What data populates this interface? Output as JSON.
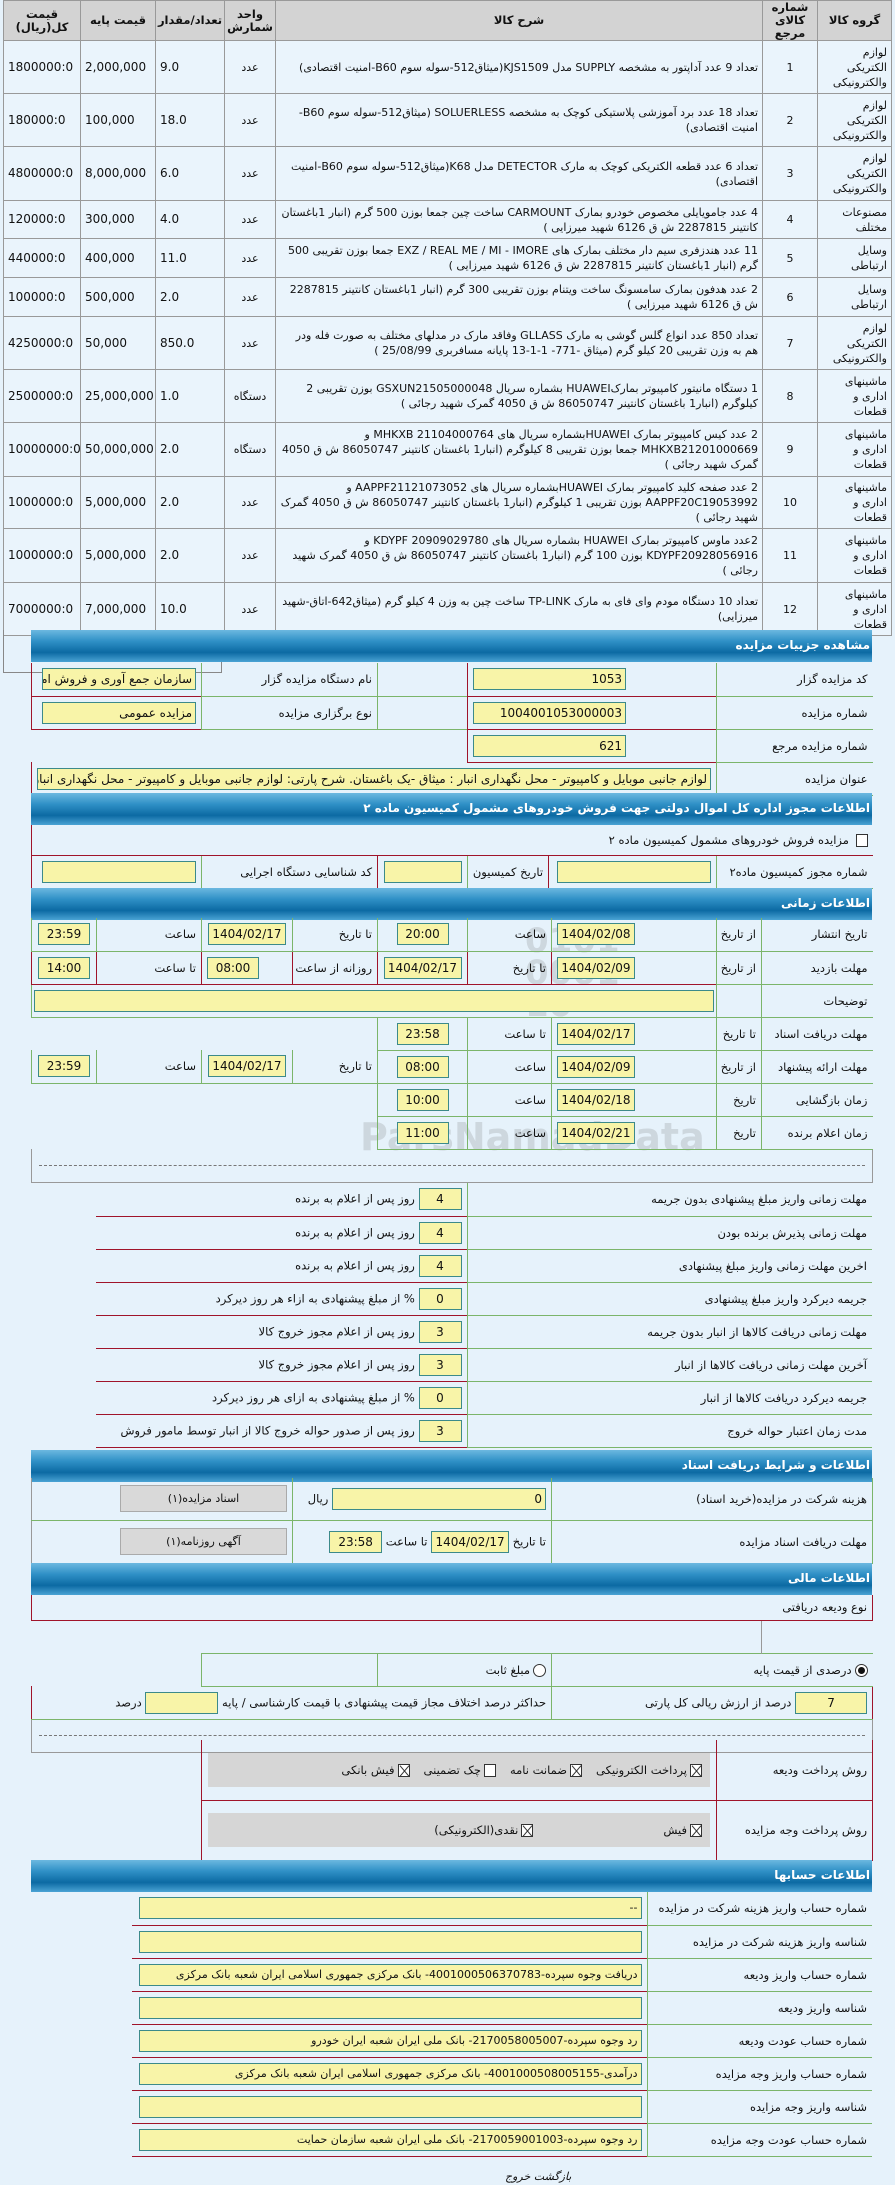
{
  "items_table": {
    "headers": [
      "گروه کالا",
      "شماره کالای مرجع",
      "شرح کالا",
      "واحد شمارش",
      "تعداد/مقدار",
      "قیمت پایه",
      "قیمت کل(ریال)"
    ],
    "rows": [
      {
        "group": "لوازم الکتریکی والکترونیکی",
        "ref": "1",
        "desc": "تعداد 9 عدد آداپتور به مشخصه SUPPLY مدل KJS1509(میثاق512-سوله سوم B60-امنیت اقتصادی)",
        "unit": "عدد",
        "qty": "9.0",
        "base": "2,000,000",
        "total": "1800000:0"
      },
      {
        "group": "لوازم الکتریکی والکترونیکی",
        "ref": "2",
        "desc": "تعداد 18 عدد برد آموزشی پلاستیکی کوچک به مشخصه SOLUERLESS (میثاق512-سوله سوم B60-امنیت اقتصادی)",
        "unit": "عدد",
        "qty": "18.0",
        "base": "100,000",
        "total": "180000:0"
      },
      {
        "group": "لوازم الکتریکی والکترونیکی",
        "ref": "3",
        "desc": "تعداد 6 عدد قطعه الکتریکی کوچک به مارک DETECTOR مدل K68(میثاق512-سوله سوم B60-امنیت اقتصادی)",
        "unit": "عدد",
        "qty": "6.0",
        "base": "8,000,000",
        "total": "4800000:0"
      },
      {
        "group": "مصنوعات مختلف",
        "ref": "4",
        "desc": "4 عدد جامویایلی مخصوص خودرو بمارک CARMOUNT ساخت چین جمعا بوزن 500 گرم (انبار 1باغستان کانتینر 2287815 ش ق 6126 شهید میرزایی )",
        "unit": "عدد",
        "qty": "4.0",
        "base": "300,000",
        "total": "120000:0"
      },
      {
        "group": "وسایل ارتباطی",
        "ref": "5",
        "desc": "11 عدد هندزفری سیم دار مختلف بمارک های EXZ / REAL ME / MI - IMORE جمعا بوزن تقریبی 500 گرم (انبار 1باغستان کانتینر 2287815 ش ق 6126 شهید میرزایی )",
        "unit": "عدد",
        "qty": "11.0",
        "base": "400,000",
        "total": "440000:0"
      },
      {
        "group": "وسایل ارتباطی",
        "ref": "6",
        "desc": "2 عدد هدفون بمارک سامسونگ ساخت ویتنام بوزن تقریبی 300 گرم (انبار 1باغستان کانتینر 2287815 ش ق 6126 شهید میرزایی )",
        "unit": "عدد",
        "qty": "2.0",
        "base": "500,000",
        "total": "100000:0"
      },
      {
        "group": "لوازم الکتریکی والکترونیکی",
        "ref": "7",
        "desc": "تعداد 850 عدد انواع گلس گوشی به مارک GLLASS وفاقد مارک در مدلهای مختلف به صورت فله ودر هم به وزن تقریبی 20 کیلو گرم (میثاق -771- 1-1-13 پایانه مسافربری 25/08/99 )",
        "unit": "عدد",
        "qty": "850.0",
        "base": "50,000",
        "total": "4250000:0"
      },
      {
        "group": "ماشینهای اداری و قطعات",
        "ref": "8",
        "desc": "1 دستگاه مانیتور کامپیوتر بمارکHUAWEI بشماره سریال GSXUN21505000048 بوزن تقریبی 2 کیلوگرم (انبار1 باغستان کانتینر 86050747 ش ق 4050 گمرک شهید رجائی )",
        "unit": "دستگاه",
        "qty": "1.0",
        "base": "25,000,000",
        "total": "2500000:0"
      },
      {
        "group": "ماشینهای اداری و قطعات",
        "ref": "9",
        "desc": "2 عدد کیس کامپیوتر بمارک HUAWEIبشماره سریال های MHKXB 21104000764 و MHKXB21201000669 جمعا بوزن تقریبی 8 کیلوگرم (انبار1 باغستان کانتینر 86050747 ش ق 4050 گمرک شهید رجائی )",
        "unit": "دستگاه",
        "qty": "2.0",
        "base": "50,000,000",
        "total": "10000000:0"
      },
      {
        "group": "ماشینهای اداری و قطعات",
        "ref": "10",
        "desc": "2 عدد صفحه کلید کامپیوتر بمارک HUAWEIبشماره سریال های AAPPF21121073052 و AAPPF20C19053992 بوزن تقریبی 1 کیلوگرم (انبار1 باغستان کانتینر 86050747 ش ق 4050 گمرک شهید رجائی )",
        "unit": "عدد",
        "qty": "2.0",
        "base": "5,000,000",
        "total": "1000000:0"
      },
      {
        "group": "ماشینهای اداری و قطعات",
        "ref": "11",
        "desc": "2عدد ماوس کامپیوتر بمارک HUAWEI بشماره سریال های KDYPF 20909029780 و KDYPF20928056916 بوزن 100 گرم (انبار1 باغستان کانتینر 86050747 ش ق 4050 گمرک شهید رجائی )",
        "unit": "عدد",
        "qty": "2.0",
        "base": "5,000,000",
        "total": "1000000:0"
      },
      {
        "group": "ماشینهای اداری و قطعات",
        "ref": "12",
        "desc": "تعداد 10 دستگاه مودم وای فای به مارک TP-LINK ساخت چین به وزن 4 کیلو گرم (میثاق642-اتاق-شهید میرزایی)",
        "unit": "عدد",
        "qty": "10.0",
        "base": "7,000,000",
        "total": "7000000:0"
      }
    ]
  },
  "details": {
    "title": "مشاهده جزییات مزایده",
    "code_label": "کد مزایده گزار",
    "code": "1053",
    "org_label": "نام دستگاه مزایده گزار",
    "org": "سازمان جمع آوری و فروش امو",
    "number_label": "شماره مزایده",
    "number": "1004001053000003",
    "type_label": "نوع برگزاری مزایده",
    "type": "مزایده عمومی",
    "ref_label": "شماره مزایده مرجع",
    "ref": "621",
    "subject_label": "عنوان مزایده",
    "subject": "لوازم جانبی موبایل و کامپیوتر - محل نگهداری انبار : میثاق -یک باغستان. شرح پارتی: لوازم جانبی موبایل و کامپیوتر - محل نگهداری انبار"
  },
  "permit": {
    "title": "اطلاعات مجوز اداره کل اموال دولتی جهت فروش خودروهای مشمول کمیسیون ماده ۲",
    "checkbox_label": "مزایده فروش خودروهای مشمول کمیسیون ماده ۲",
    "checked": false,
    "permit_no_label": "شماره مجوز کمیسیون ماده۲",
    "permit_no": "",
    "date_label": "تاریخ کمیسیون",
    "date": "",
    "exec_code_label": "کد شناسایی دستگاه اجرایی",
    "exec_code": ""
  },
  "timing": {
    "title": "اطلاعات زمانی",
    "from_date": "از تاریخ",
    "to_date": "تا تاریخ",
    "hour": "ساعت",
    "to_hour": "تا ساعت",
    "date": "تاریخ",
    "daily_from": "روزانه از ساعت",
    "publish_label": "تاریخ انتشار",
    "publish_from": "1404/02/08",
    "publish_from_time": "20:00",
    "publish_to": "1404/02/17",
    "publish_to_time": "23:59",
    "visit_label": "مهلت بازدید",
    "visit_from": "1404/02/09",
    "visit_to": "1404/02/17",
    "visit_daily_from": "08:00",
    "visit_daily_to": "14:00",
    "notes_label": "توضیحات",
    "notes": "",
    "docs_label": "مهلت دریافت اسناد",
    "docs_to": "1404/02/17",
    "docs_to_time": "23:58",
    "offer_label": "مهلت ارائه پیشنهاد",
    "offer_from": "1404/02/09",
    "offer_from_time": "08:00",
    "offer_to": "1404/02/17",
    "offer_to_time": "23:59",
    "opening_label": "زمان بازگشایی",
    "opening_date": "1404/02/18",
    "opening_time": "10:00",
    "winner_label": "زمان اعلام برنده",
    "winner_date": "1404/02/21",
    "winner_time": "11:00"
  },
  "deadlines": [
    {
      "label": "مهلت زمانی واریز مبلغ پیشنهادی بدون جریمه",
      "value": "4",
      "suffix": "روز پس از اعلام به برنده"
    },
    {
      "label": "مهلت زمانی پذیرش برنده بودن",
      "value": "4",
      "suffix": "روز پس از اعلام به برنده"
    },
    {
      "label": "اخرین مهلت زمانی واریز مبلغ پیشنهادی",
      "value": "4",
      "suffix": "روز پس از اعلام به برنده"
    },
    {
      "label": "جریمه دیرکرد واریز مبلغ پیشنهادی",
      "value": "0",
      "suffix": "% از مبلغ پیشنهادی به ازاء هر روز دیرکرد"
    },
    {
      "label": "مهلت زمانی دریافت کالاها از انبار بدون جریمه",
      "value": "3",
      "suffix": "روز پس از اعلام مجوز خروج کالا"
    },
    {
      "label": "آخرین مهلت زمانی دریافت کالاها از انبار",
      "value": "3",
      "suffix": "روز پس از اعلام مجوز خروج کالا"
    },
    {
      "label": "جریمه دیرکرد دریافت کالاها از انبار",
      "value": "0",
      "suffix": "% از مبلغ پیشنهادی به ازای هر روز دیرکرد"
    },
    {
      "label": "مدت زمان اعتبار حواله خروج",
      "value": "3",
      "suffix": "روز پس از صدور حواله خروج کالا از انبار توسط مامور فروش"
    }
  ],
  "documents": {
    "title": "اطلاعات و شرایط دریافت اسناد",
    "fee_label": "هزینه شرکت در مزایده(خرید اسناد)",
    "fee": "0",
    "currency": "ریال",
    "docs_button": "اسناد مزایده(۱)",
    "deadline_label": "مهلت دریافت اسناد مزایده",
    "to_date": "تا تاریخ",
    "date": "1404/02/17",
    "to_hour": "تا ساعت",
    "time": "23:58",
    "ad_button": "آگهی روزنامه(۱)"
  },
  "finance": {
    "title": "اطلاعات مالی",
    "deposit_type_label": "نوع ودیعه دریافتی",
    "percent_option": "درصدی از قیمت پایه",
    "percent_selected": true,
    "fixed_option": "مبلغ ثابت",
    "fixed_selected": false,
    "percent_value": "7",
    "percent_suffix": "درصد از ارزش ریالی کل پارتی",
    "max_diff_label": "حداکثر درصد اختلاف مجاز قیمت پیشنهادی با قیمت کارشناسی / پایه",
    "max_diff": "",
    "max_diff_unit": "درصد",
    "deposit_pay_label": "روش پرداخت ودیعه",
    "deposit_methods": [
      {
        "label": "پرداخت الکترونیکی",
        "checked": true
      },
      {
        "label": "ضمانت نامه",
        "checked": true
      },
      {
        "label": "چک تضمینی",
        "checked": false
      },
      {
        "label": "فیش بانکی",
        "checked": true
      }
    ],
    "amount_pay_label": "روش پرداخت وجه مزایده",
    "amount_methods": [
      {
        "label": "فیش",
        "checked": true
      },
      {
        "label": "نقدی(الکترونیکی)",
        "checked": true
      }
    ]
  },
  "accounts": {
    "title": "اطلاعات حسابها",
    "rows": [
      {
        "label": "شماره حساب واریز هزینه شرکت در مزایده",
        "value": "--"
      },
      {
        "label": "شناسه واریز هزینه شرکت در مزایده",
        "value": ""
      },
      {
        "label": "شماره حساب واریز ودیعه",
        "value": "دریافت وجوه سپردە-4001000506370783- بانک مرکزی جمهوری اسلامی ایران شعبه بانک مرکزی"
      },
      {
        "label": "شناسه واریز ودیعه",
        "value": ""
      },
      {
        "label": "شماره حساب عودت ودیعه",
        "value": "رد وجوه سپرده-2170058005007- بانک ملی ایران شعبه ایران خودرو"
      },
      {
        "label": "شماره حساب واریز وجه مزایده",
        "value": "درآمدی-4001000508005155- بانک مرکزی جمهوری اسلامی ایران شعبه بانک مرکزی"
      },
      {
        "label": "شناسه واریز وجه مزایده",
        "value": ""
      },
      {
        "label": "شماره حساب عودت وجه مزایده",
        "value": "رد وجوه سپرده-2170059001003- بانک ملی ایران شعبه سازمان حمایت"
      }
    ]
  },
  "footer": {
    "back": "بازگشت",
    "exit": "خروج"
  },
  "watermark": {
    "text": "ParsNamadData",
    "digits": "0101 0001 10"
  },
  "colors": {
    "page_bg": "#e6f2fb",
    "input_bg": "#f8f4a8",
    "header_bar": "#1a7ab5",
    "border_red": "#a0142a",
    "border_green": "#7bb56a"
  }
}
